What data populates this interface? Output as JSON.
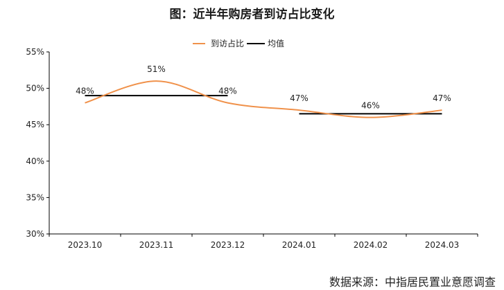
{
  "chart_data": {
    "type": "line",
    "title": "图：近半年购房者到访占比变化",
    "categories": [
      "2023.10",
      "2023.11",
      "2023.12",
      "2024.01",
      "2024.02",
      "2024.03"
    ],
    "series": [
      {
        "name": "到访占比",
        "values": [
          48,
          51,
          48,
          47,
          46,
          47
        ],
        "labels": [
          "48%",
          "51%",
          "48%",
          "47%",
          "46%",
          "47%"
        ],
        "color": "#F0914A"
      }
    ],
    "mean_lines": {
      "name": "均值",
      "color": "#000000",
      "segments": [
        {
          "from": "2023.10",
          "to": "2023.12",
          "value": 49
        },
        {
          "from": "2024.01",
          "to": "2024.03",
          "value": 46.5
        }
      ]
    },
    "ylim": [
      30,
      55
    ],
    "yticks": [
      30,
      35,
      40,
      45,
      50,
      55
    ],
    "ytick_labels": [
      "30%",
      "35%",
      "40%",
      "45%",
      "50%",
      "55%"
    ],
    "xlabel": "",
    "ylabel": "",
    "legend_position": "top-center",
    "grid": false
  },
  "source_text": "数据来源：中指居民置业意愿调查"
}
